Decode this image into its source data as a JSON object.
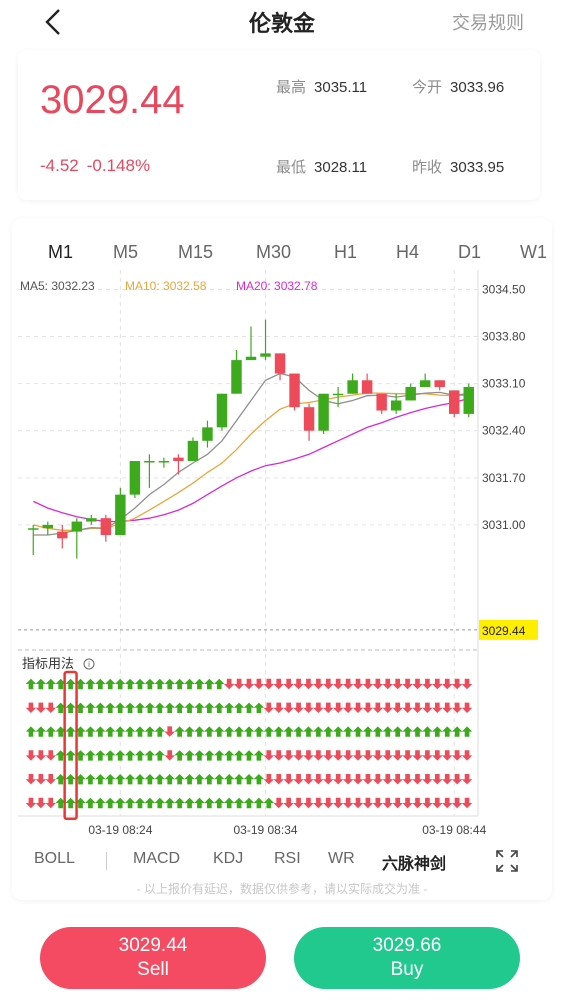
{
  "header": {
    "title": "伦敦金",
    "rules_label": "交易规则"
  },
  "quote": {
    "price": "3029.44",
    "change": "-4.52",
    "change_pct": "-0.148%",
    "high_label": "最高",
    "high": "3035.11",
    "open_label": "今开",
    "open": "3033.96",
    "low_label": "最低",
    "low": "3028.11",
    "prev_close_label": "昨收",
    "prev_close": "3033.95"
  },
  "timeframes": [
    "M1",
    "M5",
    "M15",
    "M30",
    "H1",
    "H4",
    "D1",
    "W1"
  ],
  "active_timeframe": "M1",
  "ma": {
    "ma5": "MA5: 3032.23",
    "ma10": "MA10: 3032.58",
    "ma20": "MA20: 3032.78",
    "ma5_color": "#8f8f8f",
    "ma10_color": "#eaa63b",
    "ma20_color": "#d62ad6"
  },
  "colors": {
    "up": "#3daa1e",
    "down": "#ee4b5a",
    "price_tag": "#ffee00"
  },
  "signal_label": "指标用法",
  "indicators": [
    "BOLL",
    "MACD",
    "KDJ",
    "RSI",
    "WR",
    "六脉神剑"
  ],
  "active_indicator": "六脉神剑",
  "disclaimer": "- 以上报价有延迟，数据仅供参考，请以实际成交为准 -",
  "sell": {
    "price": "3029.44",
    "label": "Sell"
  },
  "buy": {
    "price": "3029.66",
    "label": "Buy"
  },
  "chart_data": {
    "type": "candlestick",
    "y_ticks": [
      "3034.50",
      "3033.80",
      "3033.10",
      "3032.40",
      "3031.70",
      "3031.00"
    ],
    "ylim": [
      3029.2,
      3034.7
    ],
    "current_price": "3029.44",
    "x_ticks": [
      "03-19 08:24",
      "03-19 08:34",
      "03-19 08:44"
    ],
    "candles": [
      {
        "o": 3030.95,
        "c": 3030.95,
        "h": 3031.0,
        "l": 3030.55
      },
      {
        "o": 3030.95,
        "c": 3031.0,
        "h": 3031.05,
        "l": 3030.85
      },
      {
        "o": 3030.9,
        "c": 3030.8,
        "h": 3031.0,
        "l": 3030.65
      },
      {
        "o": 3030.9,
        "c": 3031.05,
        "h": 3031.1,
        "l": 3030.5
      },
      {
        "o": 3031.05,
        "c": 3031.1,
        "h": 3031.15,
        "l": 3031.0
      },
      {
        "o": 3031.1,
        "c": 3030.85,
        "h": 3031.15,
        "l": 3030.75
      },
      {
        "o": 3030.85,
        "c": 3031.45,
        "h": 3031.55,
        "l": 3030.85
      },
      {
        "o": 3031.45,
        "c": 3031.95,
        "h": 3031.95,
        "l": 3031.4
      },
      {
        "o": 3031.95,
        "c": 3031.95,
        "h": 3032.05,
        "l": 3031.55
      },
      {
        "o": 3031.95,
        "c": 3031.95,
        "h": 3032.0,
        "l": 3031.85
      },
      {
        "o": 3032.0,
        "c": 3031.95,
        "h": 3032.05,
        "l": 3031.75
      },
      {
        "o": 3031.95,
        "c": 3032.25,
        "h": 3032.3,
        "l": 3031.95
      },
      {
        "o": 3032.25,
        "c": 3032.45,
        "h": 3032.55,
        "l": 3032.15
      },
      {
        "o": 3032.45,
        "c": 3032.95,
        "h": 3032.95,
        "l": 3032.4
      },
      {
        "o": 3032.95,
        "c": 3033.45,
        "h": 3033.6,
        "l": 3032.95
      },
      {
        "o": 3033.45,
        "c": 3033.5,
        "h": 3033.95,
        "l": 3033.45
      },
      {
        "o": 3033.5,
        "c": 3033.55,
        "h": 3034.05,
        "l": 3033.45
      },
      {
        "o": 3033.55,
        "c": 3033.25,
        "h": 3033.55,
        "l": 3033.15
      },
      {
        "o": 3033.25,
        "c": 3032.75,
        "h": 3033.25,
        "l": 3032.7
      },
      {
        "o": 3032.75,
        "c": 3032.4,
        "h": 3032.8,
        "l": 3032.25
      },
      {
        "o": 3032.4,
        "c": 3032.95,
        "h": 3032.95,
        "l": 3032.35
      },
      {
        "o": 3032.95,
        "c": 3032.95,
        "h": 3033.05,
        "l": 3032.75
      },
      {
        "o": 3032.95,
        "c": 3033.15,
        "h": 3033.25,
        "l": 3032.95
      },
      {
        "o": 3033.15,
        "c": 3032.95,
        "h": 3033.25,
        "l": 3032.95
      },
      {
        "o": 3032.95,
        "c": 3032.7,
        "h": 3032.95,
        "l": 3032.65
      },
      {
        "o": 3032.7,
        "c": 3032.85,
        "h": 3032.95,
        "l": 3032.65
      },
      {
        "o": 3032.85,
        "c": 3033.05,
        "h": 3033.1,
        "l": 3032.85
      },
      {
        "o": 3033.05,
        "c": 3033.15,
        "h": 3033.25,
        "l": 3033.05
      },
      {
        "o": 3033.15,
        "c": 3033.05,
        "h": 3033.15,
        "l": 3033.0
      },
      {
        "o": 3033.0,
        "c": 3032.65,
        "h": 3033.0,
        "l": 3032.6
      },
      {
        "o": 3032.65,
        "c": 3033.05,
        "h": 3033.1,
        "l": 3032.6
      }
    ],
    "ma5": [
      3030.85,
      3030.85,
      3030.88,
      3030.92,
      3030.96,
      3030.95,
      3031.08,
      3031.25,
      3031.45,
      3031.6,
      3031.78,
      3031.92,
      3032.05,
      3032.25,
      3032.55,
      3032.85,
      3033.15,
      3033.25,
      3033.2,
      3033.0,
      3032.85,
      3032.8,
      3032.85,
      3032.92,
      3032.93,
      3032.9,
      3032.93,
      3032.96,
      3032.97,
      3032.93,
      3032.95
    ],
    "ma10": [
      3031.0,
      3030.95,
      3030.92,
      3030.92,
      3030.95,
      3030.95,
      3031.02,
      3031.1,
      3031.22,
      3031.35,
      3031.48,
      3031.62,
      3031.78,
      3031.92,
      3032.12,
      3032.35,
      3032.55,
      3032.72,
      3032.8,
      3032.82,
      3032.86,
      3032.9,
      3032.93,
      3032.96,
      3032.96,
      3032.95,
      3032.95,
      3032.95,
      3032.93,
      3032.92,
      3032.93
    ],
    "ma20": [
      3031.35,
      3031.25,
      3031.18,
      3031.12,
      3031.08,
      3031.05,
      3031.05,
      3031.07,
      3031.1,
      3031.15,
      3031.22,
      3031.32,
      3031.45,
      3031.58,
      3031.7,
      3031.8,
      3031.88,
      3031.92,
      3031.98,
      3032.05,
      3032.15,
      3032.25,
      3032.35,
      3032.45,
      3032.52,
      3032.6,
      3032.67,
      3032.73,
      3032.78,
      3032.82,
      3032.88
    ],
    "signal_rows": [
      [
        1,
        1,
        1,
        1,
        1,
        1,
        1,
        1,
        1,
        1,
        1,
        1,
        1,
        1,
        1,
        1,
        1,
        1,
        1,
        1,
        0,
        0,
        0,
        0,
        0,
        0,
        0,
        0,
        0,
        0,
        0,
        0,
        0,
        0,
        0,
        0,
        0,
        0,
        0,
        0,
        0,
        0,
        0,
        0,
        0
      ],
      [
        0,
        0,
        0,
        1,
        1,
        1,
        1,
        1,
        1,
        1,
        1,
        1,
        1,
        1,
        1,
        1,
        1,
        1,
        1,
        1,
        1,
        1,
        1,
        1,
        0,
        0,
        0,
        0,
        0,
        0,
        0,
        0,
        0,
        0,
        0,
        0,
        0,
        0,
        0,
        0,
        0,
        0,
        0,
        0,
        0
      ],
      [
        1,
        1,
        1,
        1,
        1,
        1,
        1,
        1,
        1,
        1,
        1,
        1,
        1,
        1,
        0,
        1,
        1,
        1,
        1,
        1,
        1,
        1,
        1,
        1,
        1,
        1,
        1,
        1,
        1,
        1,
        1,
        1,
        1,
        1,
        1,
        1,
        1,
        1,
        1,
        1,
        1,
        1,
        1,
        1,
        1
      ],
      [
        0,
        0,
        0,
        1,
        1,
        1,
        1,
        1,
        1,
        1,
        1,
        1,
        1,
        1,
        0,
        1,
        1,
        1,
        1,
        1,
        1,
        1,
        1,
        1,
        0,
        0,
        0,
        0,
        0,
        0,
        0,
        0,
        0,
        0,
        0,
        0,
        0,
        0,
        0,
        0,
        0,
        0,
        0,
        0,
        0
      ],
      [
        0,
        0,
        0,
        1,
        1,
        1,
        1,
        1,
        1,
        1,
        1,
        1,
        1,
        1,
        1,
        1,
        1,
        1,
        1,
        1,
        1,
        1,
        1,
        1,
        0,
        0,
        0,
        0,
        0,
        0,
        0,
        0,
        0,
        0,
        0,
        0,
        0,
        0,
        0,
        0,
        0,
        0,
        0,
        0,
        0
      ],
      [
        0,
        0,
        0,
        1,
        1,
        1,
        1,
        1,
        1,
        1,
        1,
        1,
        1,
        1,
        1,
        1,
        1,
        1,
        1,
        1,
        1,
        1,
        1,
        1,
        1,
        0,
        0,
        0,
        0,
        0,
        0,
        0,
        0,
        0,
        0,
        0,
        0,
        0,
        0,
        0,
        0,
        0,
        0,
        0,
        0
      ]
    ]
  }
}
